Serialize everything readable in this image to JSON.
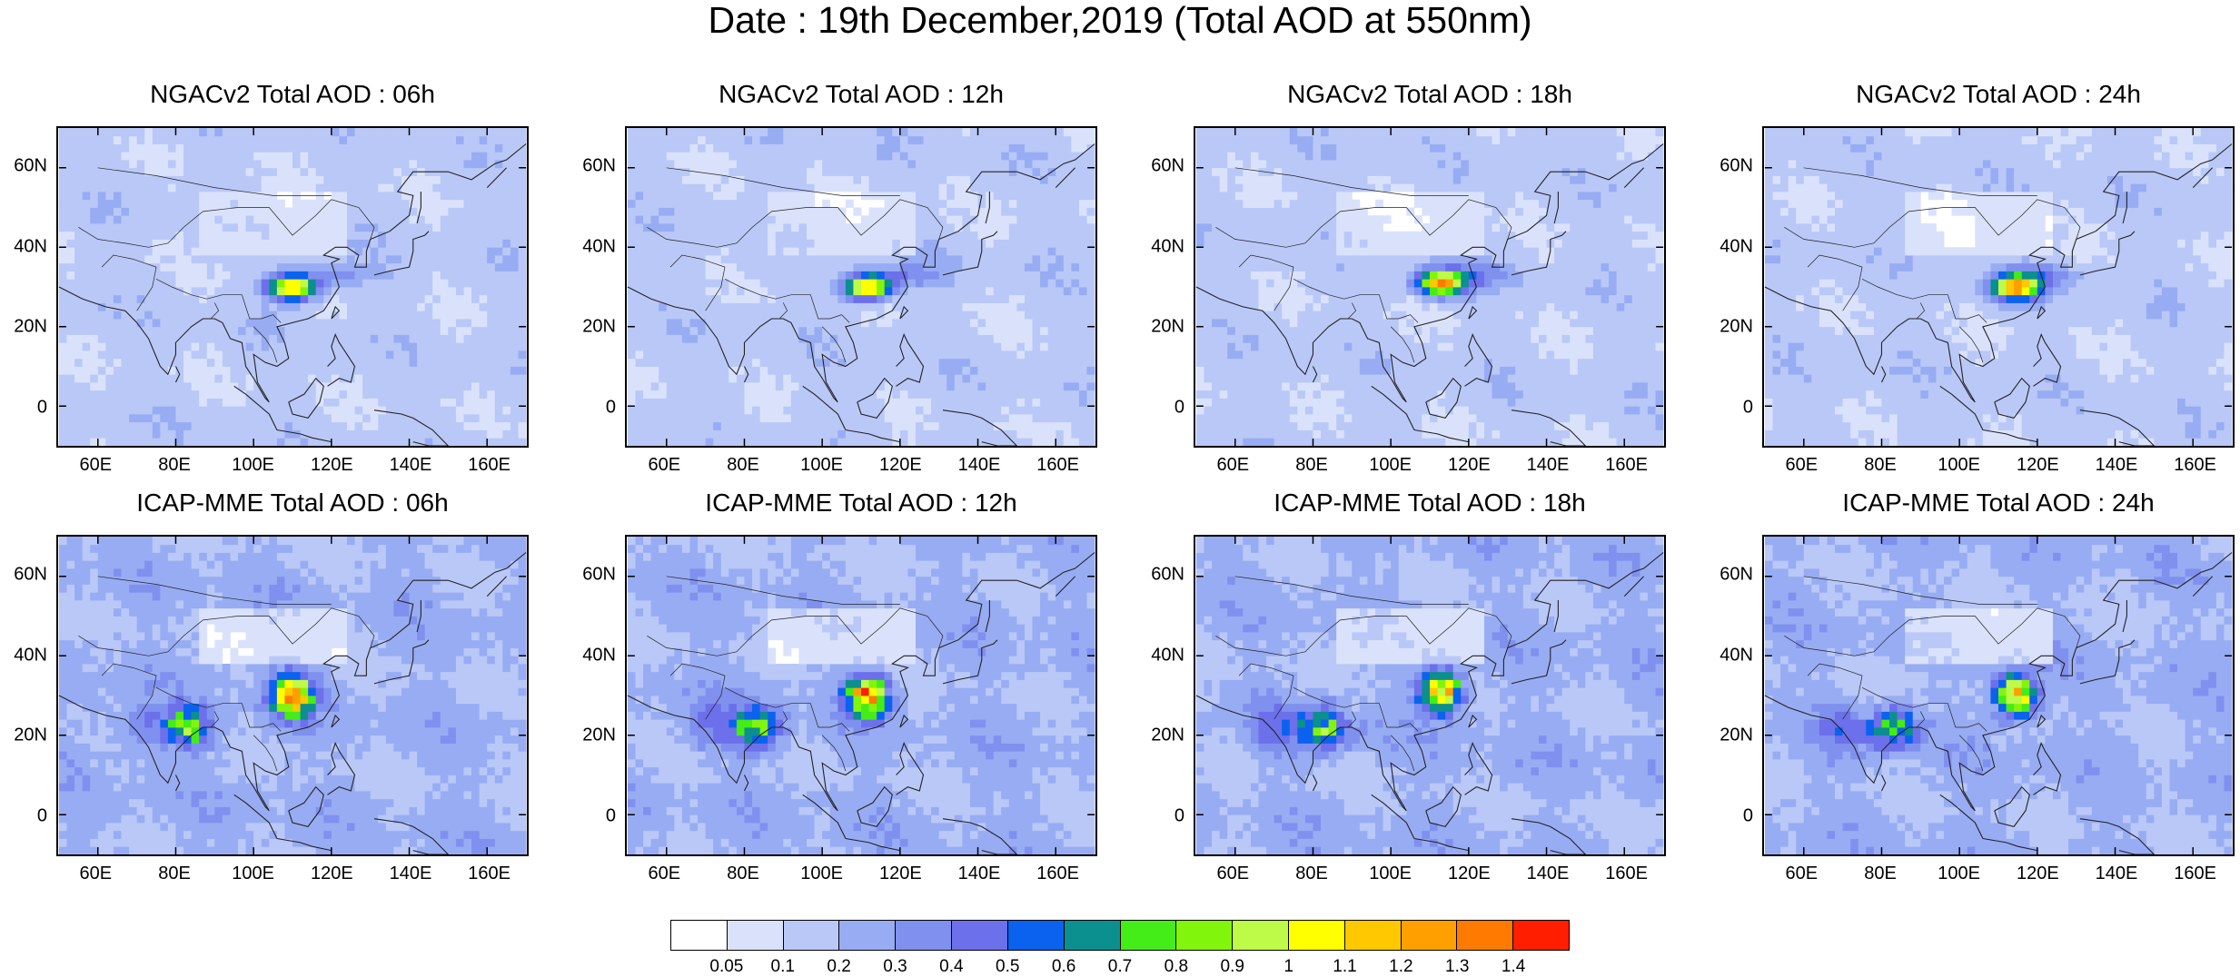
{
  "title": "Date : 19th December,2019 (Total AOD at 550nm)",
  "lat_ticks": [
    "60N",
    "40N",
    "20N",
    "0"
  ],
  "lon_ticks": [
    "60E",
    "80E",
    "100E",
    "120E",
    "140E",
    "160E"
  ],
  "panels": [
    {
      "title": "NGACv2 Total AOD : 06h",
      "model": "NGACv2",
      "hour": "06h"
    },
    {
      "title": "NGACv2 Total AOD : 12h",
      "model": "NGACv2",
      "hour": "12h"
    },
    {
      "title": "NGACv2 Total AOD : 18h",
      "model": "NGACv2",
      "hour": "18h"
    },
    {
      "title": "NGACv2 Total AOD : 24h",
      "model": "NGACv2",
      "hour": "24h"
    },
    {
      "title": "ICAP-MME Total AOD : 06h",
      "model": "ICAP-MME",
      "hour": "06h"
    },
    {
      "title": "ICAP-MME Total AOD : 12h",
      "model": "ICAP-MME",
      "hour": "12h"
    },
    {
      "title": "ICAP-MME Total AOD : 18h",
      "model": "ICAP-MME",
      "hour": "18h"
    },
    {
      "title": "ICAP-MME Total AOD : 24h",
      "model": "ICAP-MME",
      "hour": "24h"
    }
  ],
  "colorbar": {
    "labels": [
      "0.05",
      "0.1",
      "0.2",
      "0.3",
      "0.4",
      "0.5",
      "0.6",
      "0.7",
      "0.8",
      "0.9",
      "1",
      "1.1",
      "1.2",
      "1.3",
      "1.4"
    ],
    "colors": [
      "#ffffff",
      "#dae2fb",
      "#b9c8f7",
      "#98acf3",
      "#8090ef",
      "#6c70ea",
      "#0a62ef",
      "#0c8f8f",
      "#44ec18",
      "#82f50c",
      "#befa48",
      "#ffff00",
      "#ffc800",
      "#ffa000",
      "#ff7a00",
      "#ff1e00"
    ]
  }
}
